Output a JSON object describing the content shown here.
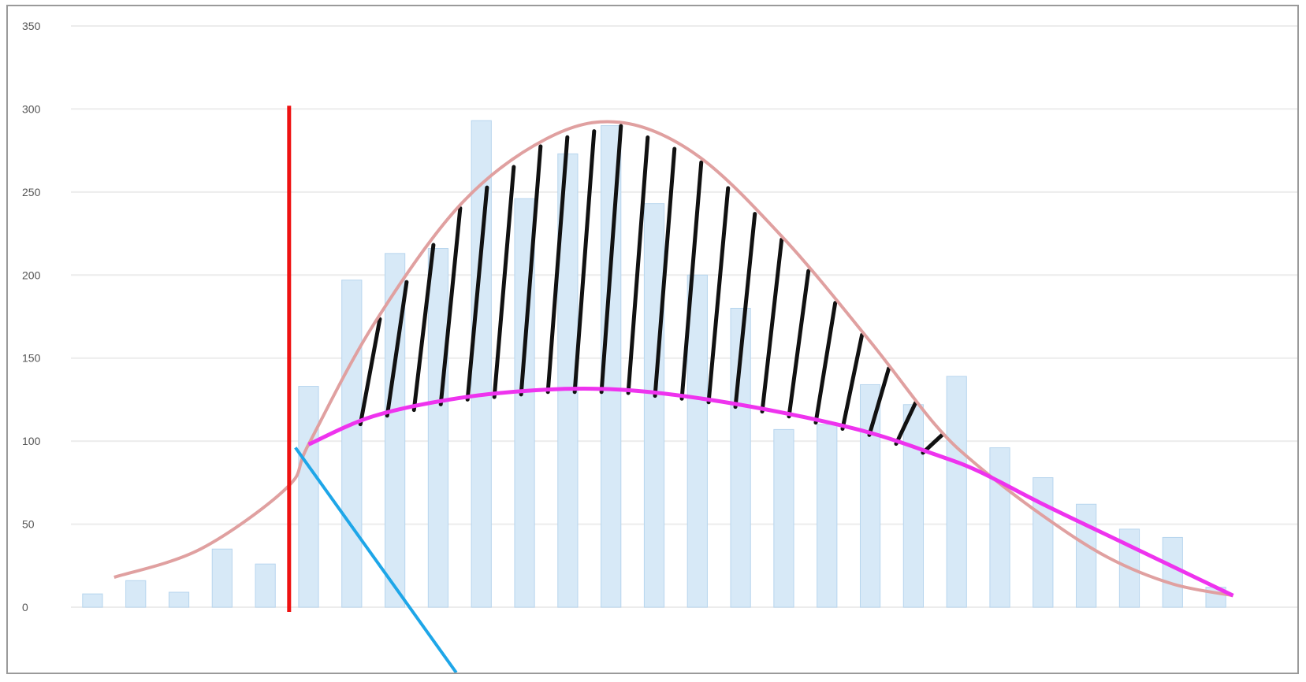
{
  "chart_data": {
    "type": "bar",
    "yticks": [
      "0",
      "50",
      "100",
      "150",
      "200",
      "250",
      "300",
      "350"
    ],
    "ylim": [
      0,
      350
    ],
    "grid": true,
    "values": [
      8,
      16,
      9,
      35,
      26,
      133,
      197,
      213,
      216,
      293,
      246,
      273,
      290,
      243,
      200,
      180,
      107,
      110,
      134,
      122,
      139,
      96,
      78,
      62,
      47,
      42,
      12
    ],
    "normal_curve": [
      [
        0.5,
        18
      ],
      [
        2.5,
        35
      ],
      [
        4.5,
        72
      ],
      [
        5,
        98
      ],
      [
        6.5,
        170
      ],
      [
        8.5,
        242
      ],
      [
        10.5,
        282
      ],
      [
        12.2,
        292
      ],
      [
        14,
        272
      ],
      [
        16,
        222
      ],
      [
        18,
        160
      ],
      [
        19.5,
        110
      ],
      [
        20.5,
        85
      ],
      [
        22,
        55
      ],
      [
        23.5,
        30
      ],
      [
        25,
        14
      ],
      [
        26.4,
        7
      ]
    ],
    "magenta_curve": [
      [
        5,
        98
      ],
      [
        6.5,
        115
      ],
      [
        8.5,
        126
      ],
      [
        10.5,
        131
      ],
      [
        12.2,
        131
      ],
      [
        14,
        126
      ],
      [
        16,
        117
      ],
      [
        18,
        105
      ],
      [
        19.5,
        92
      ],
      [
        20.5,
        82
      ],
      [
        22,
        62
      ],
      [
        24,
        37
      ],
      [
        26.4,
        7
      ]
    ],
    "cutoff_x": 5,
    "colors": {
      "bars": "#d7e9f7",
      "bar_edge": "#b7d5ee",
      "normal_curve": "#e0a0a0",
      "magenta_curve": "#ee33ee",
      "cutoff_line": "#ee1111",
      "hatch": "#111111",
      "pointer_line": "#1ea6e8",
      "grid": "#ececec"
    }
  }
}
